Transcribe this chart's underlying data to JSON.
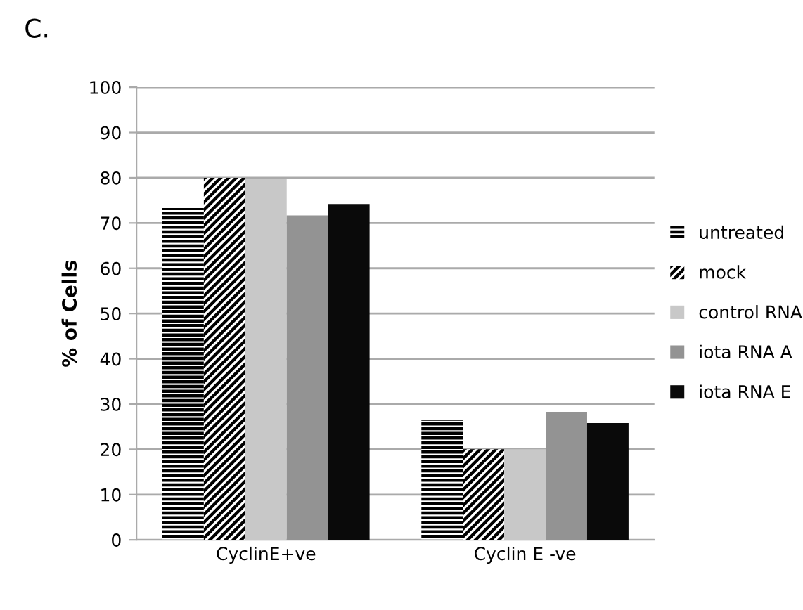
{
  "chart_data": {
    "type": "bar",
    "title": "C.",
    "ylabel": "% of Cells",
    "categories": [
      "CyclinE+ve",
      "Cyclin E -ve"
    ],
    "series": [
      {
        "name": "untreated",
        "color": "#ffffff",
        "values": [
          73.3,
          26.4
        ]
      },
      {
        "name": "mock",
        "color": "#ffffff",
        "values": [
          80,
          20
        ]
      },
      {
        "name": "control RNA",
        "color": "#c8c8c8",
        "values": [
          79.8,
          20
        ]
      },
      {
        "name": "iota RNA A",
        "color": "#939393",
        "values": [
          71.7,
          28.3
        ]
      },
      {
        "name": "iota RNA E",
        "color": "#0a0a0a",
        "values": [
          74.2,
          25.8
        ]
      }
    ],
    "ylim": [
      0,
      100
    ],
    "yticks": [
      0,
      10,
      20,
      30,
      40,
      50,
      60,
      70,
      80,
      90,
      100
    ],
    "grid": "y",
    "legend": "right"
  }
}
